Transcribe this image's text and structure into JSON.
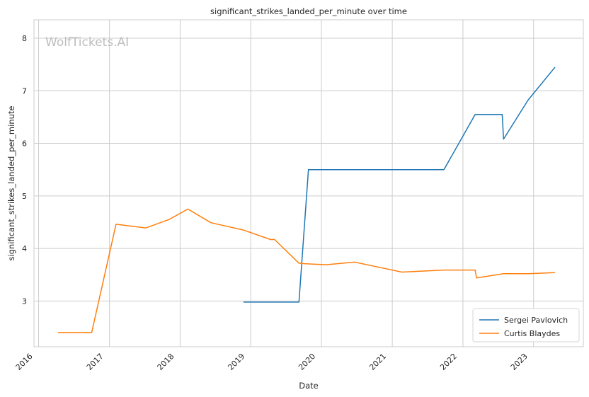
{
  "chart_data": {
    "type": "line",
    "title": "significant_strikes_landed_per_minute over time",
    "xlabel": "Date",
    "ylabel": "significant_strikes_landed_per_minute",
    "watermark": "WolfTickets.AI",
    "x_ticks": [
      "2016",
      "2017",
      "2018",
      "2019",
      "2020",
      "2021",
      "2022",
      "2023"
    ],
    "y_ticks": [
      "3",
      "4",
      "5",
      "6",
      "7",
      "8"
    ],
    "xlim": [
      "2015-12-08",
      "2023-09-15"
    ],
    "ylim": [
      2.13,
      8.35
    ],
    "grid": true,
    "legend_position": "lower-right",
    "series": [
      {
        "name": "Sergei Pavlovich",
        "color": "#1f77b4",
        "points": [
          [
            "2018-11-24",
            2.98
          ],
          [
            "2019-09-07",
            2.98
          ],
          [
            "2019-10-26",
            5.5
          ],
          [
            "2021-09-25",
            5.5
          ],
          [
            "2022-03-05",
            6.55
          ],
          [
            "2022-07-23",
            6.55
          ],
          [
            "2022-07-30",
            6.08
          ],
          [
            "2022-12-03",
            6.82
          ],
          [
            "2023-04-22",
            7.45
          ]
        ]
      },
      {
        "name": "Curtis Blaydes",
        "color": "#ff7f0e",
        "points": [
          [
            "2016-04-10",
            2.4
          ],
          [
            "2016-10-01",
            2.4
          ],
          [
            "2017-02-04",
            4.46
          ],
          [
            "2017-07-08",
            4.39
          ],
          [
            "2017-11-04",
            4.55
          ],
          [
            "2018-02-10",
            4.75
          ],
          [
            "2018-06-09",
            4.49
          ],
          [
            "2018-11-24",
            4.35
          ],
          [
            "2019-04-13",
            4.17
          ],
          [
            "2019-05-04",
            4.17
          ],
          [
            "2019-09-07",
            3.72
          ],
          [
            "2019-10-05",
            3.71
          ],
          [
            "2020-01-25",
            3.69
          ],
          [
            "2020-06-20",
            3.74
          ],
          [
            "2021-02-20",
            3.55
          ],
          [
            "2021-09-25",
            3.59
          ],
          [
            "2022-03-05",
            3.59
          ],
          [
            "2022-03-12",
            3.44
          ],
          [
            "2022-07-30",
            3.52
          ],
          [
            "2022-12-03",
            3.52
          ],
          [
            "2023-04-22",
            3.54
          ]
        ]
      }
    ]
  }
}
